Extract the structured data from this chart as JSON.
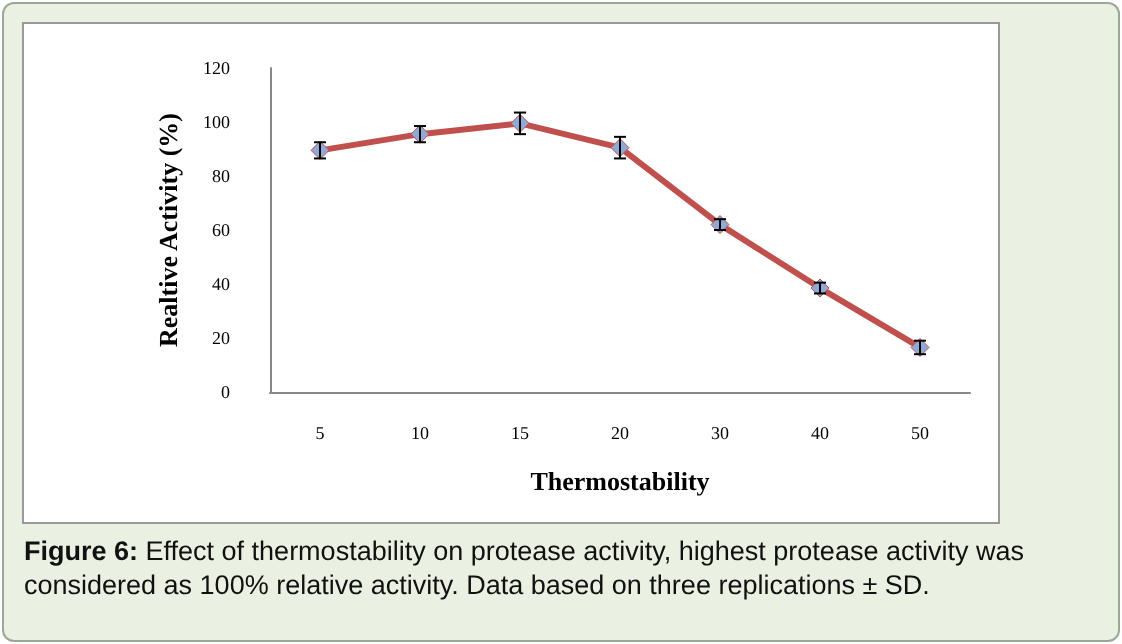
{
  "chart_data": {
    "type": "line",
    "categories": [
      "5",
      "10",
      "15",
      "20",
      "30",
      "40",
      "50"
    ],
    "series": [
      {
        "color": "#c0504d",
        "colors": [
          "#8eaad6",
          "#8eaad6",
          "#8eaad6",
          "#8eaad6",
          "#8eaad6",
          "#8eaad6",
          "#8eaad6"
        ],
        "values": [
          89.5,
          95.5,
          99.5,
          90.5,
          62,
          38.5,
          16.5
        ],
        "errors": [
          3,
          3,
          4,
          4,
          2,
          2,
          2.5
        ]
      }
    ],
    "xlabel": "Thermostability",
    "ylabel": "Realtive Activity (%)",
    "ylim": [
      0,
      120
    ],
    "yticks": [
      0,
      20,
      40,
      60,
      80,
      100,
      120
    ],
    "grid": false,
    "marker": "diamond",
    "line_style": "solid",
    "annotations": [
      "Figure 6: Effect of thermostability on protease activity, highest protease activity was considered as 100% relative activity. Data based on three replications ± SD."
    ]
  }
}
